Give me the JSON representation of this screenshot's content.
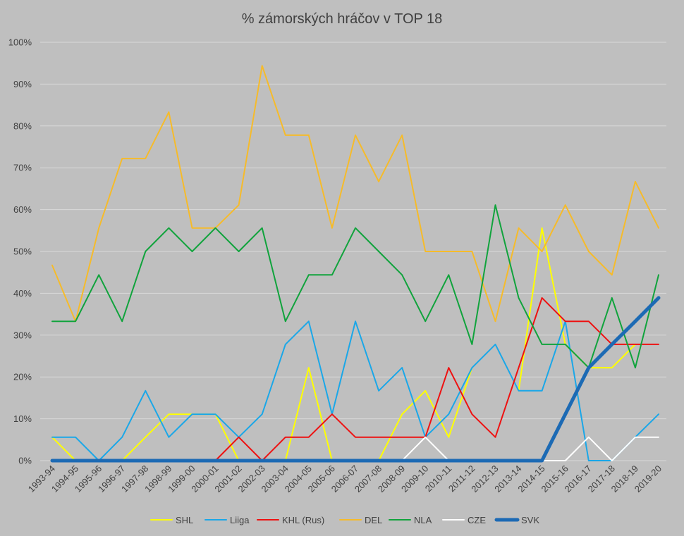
{
  "chart_data": {
    "type": "line",
    "title": "% zámorských hráčov v TOP 18",
    "xlabel": "",
    "ylabel": "",
    "ylim": [
      0,
      100
    ],
    "y_ticks": [
      "0%",
      "10%",
      "20%",
      "30%",
      "40%",
      "50%",
      "60%",
      "70%",
      "80%",
      "90%",
      "100%"
    ],
    "grid": true,
    "legend_position": "bottom",
    "categories": [
      "1993-94",
      "1994-95",
      "1995-96",
      "1996-97",
      "1997-98",
      "1998-99",
      "1999-00",
      "2000-01",
      "2001-02",
      "2002-03",
      "2003-04",
      "2004-05",
      "2005-06",
      "2006-07",
      "2007-08",
      "2008-09",
      "2009-10",
      "2010-11",
      "2011-12",
      "2012-13",
      "2013-14",
      "2014-15",
      "2015-16",
      "2016-17",
      "2017-18",
      "2018-19",
      "2019-20"
    ],
    "series": [
      {
        "name": "SHL",
        "color": "#ffff00",
        "width": 2,
        "values": [
          5.6,
          0,
          0,
          0,
          5.6,
          11.1,
          11.1,
          11.1,
          0,
          0,
          0,
          22.2,
          0,
          0,
          0,
          11.1,
          16.7,
          5.6,
          22.2,
          null,
          16.7,
          55.6,
          27.8,
          22.2,
          22.2,
          27.8,
          null
        ]
      },
      {
        "name": "Liiga",
        "color": "#1aa7e8",
        "width": 2,
        "values": [
          5.6,
          5.6,
          0,
          5.6,
          16.7,
          5.6,
          11.1,
          11.1,
          5.6,
          11.1,
          27.8,
          33.3,
          11.1,
          33.3,
          16.7,
          22.2,
          5.6,
          11.1,
          22.2,
          27.8,
          16.7,
          16.7,
          33.3,
          0,
          0,
          5.6,
          11.1
        ]
      },
      {
        "name": "KHL (Rus)",
        "color": "#ee1111",
        "width": 2,
        "values": [
          0,
          0,
          0,
          0,
          0,
          0,
          0,
          0,
          5.6,
          0,
          5.6,
          5.6,
          11.1,
          5.6,
          5.6,
          5.6,
          5.6,
          22.2,
          11.1,
          5.6,
          22.2,
          38.9,
          33.3,
          33.3,
          27.8,
          27.8,
          27.8
        ]
      },
      {
        "name": "DEL",
        "color": "#f6bb2a",
        "width": 2,
        "values": [
          46.7,
          33.3,
          55.6,
          72.2,
          72.2,
          83.3,
          55.6,
          55.6,
          61.1,
          94.4,
          77.8,
          77.8,
          55.6,
          77.8,
          66.7,
          77.8,
          50,
          50,
          50,
          33.3,
          55.6,
          50,
          61.1,
          50,
          44.4,
          66.7,
          55.6
        ]
      },
      {
        "name": "NLA",
        "color": "#10a33c",
        "width": 2,
        "values": [
          33.3,
          33.3,
          44.4,
          33.3,
          50,
          55.6,
          50,
          55.6,
          50,
          55.6,
          33.3,
          44.4,
          44.4,
          55.6,
          50,
          44.4,
          33.3,
          44.4,
          27.8,
          61.1,
          38.9,
          27.8,
          27.8,
          22.2,
          38.9,
          22.2,
          44.4
        ]
      },
      {
        "name": "CZE",
        "color": "#ffffff",
        "width": 2,
        "values": [
          null,
          null,
          null,
          null,
          null,
          null,
          null,
          null,
          null,
          null,
          null,
          null,
          null,
          null,
          null,
          0,
          5.6,
          0,
          null,
          null,
          null,
          0,
          0,
          5.6,
          0,
          5.6,
          5.6
        ]
      },
      {
        "name": "SVK",
        "color": "#1c6ab4",
        "width": 5,
        "values": [
          0,
          0,
          0,
          0,
          0,
          0,
          0,
          0,
          0,
          0,
          0,
          0,
          0,
          0,
          0,
          0,
          0,
          0,
          0,
          0,
          0,
          0,
          11.1,
          22.2,
          27.8,
          33.3,
          38.9
        ]
      }
    ]
  }
}
